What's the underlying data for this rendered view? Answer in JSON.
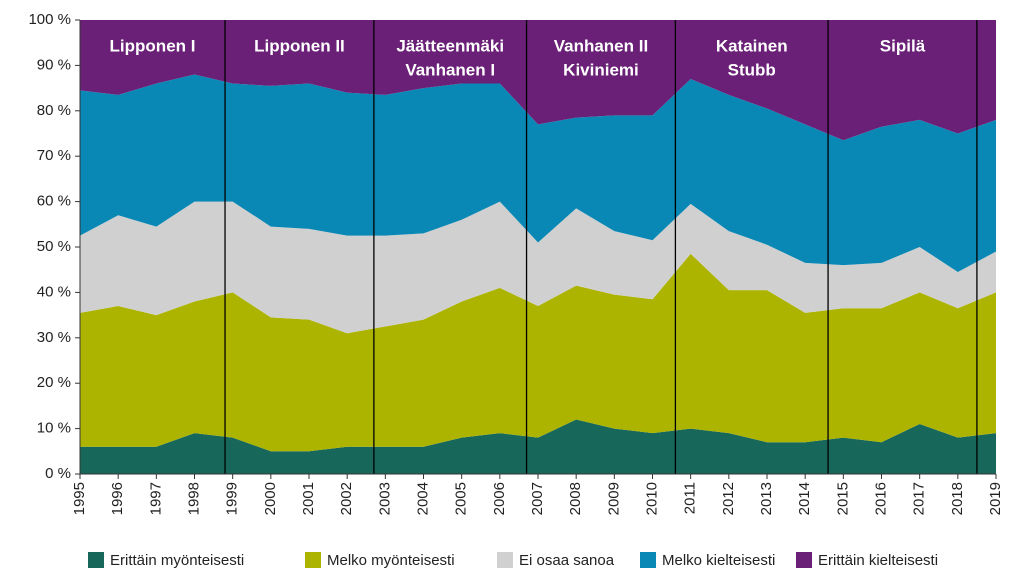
{
  "chart_data": {
    "type": "stacked_area",
    "x": [
      1995,
      1996,
      1997,
      1998,
      1999,
      2000,
      2001,
      2002,
      2003,
      2004,
      2005,
      2006,
      2007,
      2008,
      2009,
      2010,
      2011,
      2012,
      2013,
      2014,
      2015,
      2016,
      2017,
      2018,
      2019
    ],
    "xlim": [
      1995,
      2019
    ],
    "ylim": [
      0,
      100
    ],
    "yticks": [
      {
        "value": 0,
        "label": "0 %"
      },
      {
        "value": 10,
        "label": "10 %"
      },
      {
        "value": 20,
        "label": "20 %"
      },
      {
        "value": 30,
        "label": "30 %"
      },
      {
        "value": 40,
        "label": "40 %"
      },
      {
        "value": 50,
        "label": "50 %"
      },
      {
        "value": 60,
        "label": "60 %"
      },
      {
        "value": 70,
        "label": "70 %"
      },
      {
        "value": 80,
        "label": "80 %"
      },
      {
        "value": 90,
        "label": "90 %"
      },
      {
        "value": 100,
        "label": "100 %"
      }
    ],
    "series": [
      {
        "name": "Erittäin myönteisesti",
        "color": "#17685a",
        "values": [
          6,
          6,
          6,
          9,
          8,
          5,
          5,
          6,
          6,
          6,
          8,
          9,
          8,
          12,
          10,
          9,
          10,
          9,
          7,
          7,
          8,
          7,
          11,
          8,
          9
        ]
      },
      {
        "name": "Melko myönteisesti",
        "color": "#acb400",
        "values": [
          29.5,
          31,
          29,
          29,
          32,
          29.5,
          29,
          25,
          26.5,
          28,
          30,
          32,
          29,
          29.5,
          29.5,
          29.5,
          38.5,
          31.5,
          33.5,
          28.5,
          28.5,
          29.5,
          29,
          28.5,
          31
        ]
      },
      {
        "name": "Ei osaa sanoa",
        "color": "#d0d0d0",
        "values": [
          17,
          20,
          19.5,
          22,
          20,
          20,
          20,
          21.5,
          20,
          19,
          18,
          19,
          14,
          17,
          14,
          13,
          11,
          13,
          10,
          11,
          9.5,
          10,
          10,
          8,
          9
        ]
      },
      {
        "name": "Melko kielteisesti",
        "color": "#0a88b5",
        "values": [
          32,
          26.5,
          31.5,
          28,
          26,
          31,
          32,
          31.5,
          31,
          32,
          30,
          26,
          26,
          20,
          25.5,
          27.5,
          27.5,
          30,
          30,
          30.5,
          27.5,
          30,
          28,
          30.5,
          29
        ]
      },
      {
        "name": "Erittäin kielteisesti",
        "color": "#6a2077",
        "values": [
          15.5,
          16.5,
          14,
          12,
          14,
          14.5,
          14,
          16,
          16.5,
          15,
          14,
          14,
          23,
          21.5,
          21,
          21,
          13,
          16.5,
          19.5,
          23,
          26.5,
          23.5,
          22,
          25,
          22
        ]
      }
    ],
    "dividers": [
      1998.8,
      2002.7,
      2006.7,
      2010.6,
      2014.6,
      2018.5
    ],
    "annotations": [
      [
        "Lipponen I"
      ],
      [
        "Lipponen II"
      ],
      [
        "Jäätteenmäki",
        "Vanhanen I"
      ],
      [
        "Vanhanen II",
        "Kiviniemi"
      ],
      [
        "Katainen",
        "Stubb"
      ],
      [
        "Sipilä"
      ]
    ]
  }
}
